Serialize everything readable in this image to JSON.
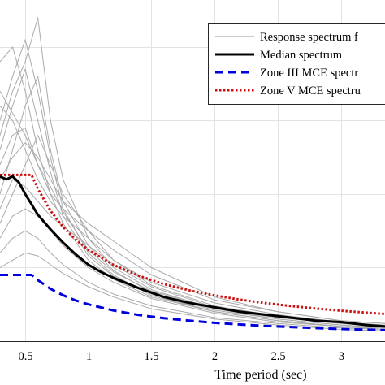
{
  "chart_data": {
    "type": "line",
    "xlabel": "Time period (sec)",
    "ylabel": "",
    "xlim": [
      0.3,
      3.35
    ],
    "ylim": [
      0.0,
      2.32
    ],
    "xticks": [
      0.5,
      1,
      1.5,
      2,
      2.5,
      3
    ],
    "xtick_labels": [
      "0.5",
      "1",
      "1.5",
      "2",
      "2.5",
      "3"
    ],
    "grid": true,
    "legend_position": "top-right",
    "legend": [
      {
        "label": "Response spectrum f",
        "style": "solid-thin",
        "color": "#aaaaaa"
      },
      {
        "label": "Median spectrum",
        "style": "solid-thick",
        "color": "#000000"
      },
      {
        "label": "Zone III MCE spectr",
        "style": "dashed",
        "color": "#0000dd"
      },
      {
        "label": "Zone V MCE spectru",
        "style": "dotted",
        "color": "#cc1111"
      }
    ],
    "series": [
      {
        "name": "Median spectrum",
        "color": "#000000",
        "x": [
          0.3,
          0.35,
          0.4,
          0.45,
          0.5,
          0.55,
          0.6,
          0.7,
          0.8,
          0.9,
          1.0,
          1.1,
          1.2,
          1.4,
          1.6,
          1.8,
          2.0,
          2.2,
          2.4,
          2.6,
          2.8,
          3.0,
          3.2,
          3.35
        ],
        "y": [
          1.12,
          1.1,
          1.12,
          1.08,
          1.0,
          0.93,
          0.86,
          0.76,
          0.67,
          0.59,
          0.52,
          0.47,
          0.43,
          0.36,
          0.3,
          0.26,
          0.23,
          0.2,
          0.18,
          0.16,
          0.14,
          0.13,
          0.11,
          0.1
        ]
      },
      {
        "name": "Zone III MCE spectrum",
        "color": "#0000dd",
        "x": [
          0.3,
          0.35,
          0.4,
          0.45,
          0.5,
          0.55,
          0.6,
          0.7,
          0.8,
          0.9,
          1.0,
          1.2,
          1.4,
          1.6,
          1.8,
          2.0,
          2.2,
          2.4,
          2.6,
          2.8,
          3.0,
          3.2,
          3.35
        ],
        "y": [
          0.45,
          0.45,
          0.45,
          0.45,
          0.45,
          0.45,
          0.415,
          0.356,
          0.312,
          0.277,
          0.25,
          0.208,
          0.178,
          0.156,
          0.139,
          0.125,
          0.113,
          0.104,
          0.096,
          0.089,
          0.083,
          0.078,
          0.075
        ]
      },
      {
        "name": "Zone V MCE spectrum",
        "color": "#cc1111",
        "x": [
          0.3,
          0.35,
          0.4,
          0.45,
          0.5,
          0.55,
          0.6,
          0.7,
          0.8,
          0.9,
          1.0,
          1.2,
          1.4,
          1.6,
          1.8,
          2.0,
          2.2,
          2.4,
          2.6,
          2.8,
          3.0,
          3.2,
          3.35
        ],
        "y": [
          1.13,
          1.13,
          1.13,
          1.13,
          1.13,
          1.13,
          1.035,
          0.887,
          0.776,
          0.69,
          0.621,
          0.518,
          0.444,
          0.388,
          0.345,
          0.311,
          0.282,
          0.259,
          0.239,
          0.222,
          0.207,
          0.194,
          0.185
        ]
      },
      {
        "name": "Response spectrum",
        "color": "#aaaaaa",
        "x": [
          0.3,
          0.4,
          0.5,
          0.6,
          0.7,
          0.8,
          1.0,
          1.2,
          1.5,
          2.0,
          2.5,
          3.0,
          3.35
        ],
        "y": [
          1.4,
          1.7,
          1.9,
          2.2,
          1.5,
          1.1,
          0.7,
          0.5,
          0.35,
          0.22,
          0.16,
          0.12,
          0.1
        ]
      },
      {
        "name": "Response spectrum",
        "color": "#aaaaaa",
        "x": [
          0.3,
          0.4,
          0.5,
          0.6,
          0.7,
          0.8,
          1.0,
          1.2,
          1.5,
          2.0,
          2.5,
          3.0,
          3.35
        ],
        "y": [
          1.0,
          1.3,
          1.6,
          1.8,
          1.3,
          0.95,
          0.65,
          0.48,
          0.33,
          0.21,
          0.15,
          0.11,
          0.09
        ]
      },
      {
        "name": "Response spectrum",
        "color": "#aaaaaa",
        "x": [
          0.3,
          0.4,
          0.5,
          0.6,
          0.7,
          0.8,
          1.0,
          1.2,
          1.5,
          2.0,
          2.5,
          3.0,
          3.35
        ],
        "y": [
          1.6,
          1.5,
          1.3,
          1.1,
          0.95,
          0.85,
          0.7,
          0.55,
          0.4,
          0.26,
          0.18,
          0.13,
          0.11
        ]
      },
      {
        "name": "Response spectrum",
        "color": "#aaaaaa",
        "x": [
          0.3,
          0.4,
          0.5,
          0.6,
          0.7,
          0.8,
          1.0,
          1.2,
          1.5,
          2.0,
          2.5,
          3.0,
          3.35
        ],
        "y": [
          0.8,
          1.0,
          1.2,
          1.4,
          1.2,
          1.0,
          0.75,
          0.55,
          0.38,
          0.24,
          0.17,
          0.12,
          0.1
        ]
      },
      {
        "name": "Response spectrum",
        "color": "#aaaaaa",
        "x": [
          0.3,
          0.4,
          0.5,
          0.6,
          0.7,
          0.8,
          1.0,
          1.2,
          1.5,
          2.0,
          2.5,
          3.0,
          3.35
        ],
        "y": [
          1.9,
          2.0,
          1.7,
          1.3,
          1.0,
          0.8,
          0.55,
          0.42,
          0.3,
          0.2,
          0.14,
          0.1,
          0.09
        ]
      },
      {
        "name": "Response spectrum",
        "color": "#aaaaaa",
        "x": [
          0.3,
          0.4,
          0.5,
          0.6,
          0.7,
          0.8,
          1.0,
          1.2,
          1.5,
          2.0,
          2.5,
          3.0,
          3.35
        ],
        "y": [
          1.2,
          1.4,
          1.45,
          1.2,
          1.0,
          0.9,
          0.75,
          0.62,
          0.45,
          0.28,
          0.2,
          0.14,
          0.12
        ]
      },
      {
        "name": "Response spectrum",
        "color": "#aaaaaa",
        "x": [
          0.3,
          0.4,
          0.5,
          0.6,
          0.7,
          0.8,
          1.0,
          1.2,
          1.5,
          2.0,
          2.5,
          3.0,
          3.35
        ],
        "y": [
          0.6,
          0.7,
          0.75,
          0.7,
          0.6,
          0.52,
          0.4,
          0.32,
          0.24,
          0.16,
          0.12,
          0.09,
          0.08
        ]
      },
      {
        "name": "Response spectrum",
        "color": "#aaaaaa",
        "x": [
          0.3,
          0.4,
          0.5,
          0.6,
          0.7,
          0.8,
          1.0,
          1.2,
          1.5,
          2.0,
          2.5,
          3.0,
          3.35
        ],
        "y": [
          1.3,
          1.6,
          1.85,
          1.5,
          1.15,
          0.85,
          0.58,
          0.44,
          0.32,
          0.2,
          0.14,
          0.1,
          0.08
        ]
      },
      {
        "name": "Response spectrum",
        "color": "#aaaaaa",
        "x": [
          0.3,
          0.4,
          0.5,
          0.6,
          0.7,
          0.8,
          1.0,
          1.2,
          1.5,
          2.0,
          2.5,
          3.0,
          3.35
        ],
        "y": [
          0.9,
          1.1,
          1.05,
          0.95,
          0.85,
          0.78,
          0.65,
          0.52,
          0.37,
          0.23,
          0.16,
          0.12,
          0.1
        ]
      },
      {
        "name": "Response spectrum",
        "color": "#aaaaaa",
        "x": [
          0.3,
          0.4,
          0.5,
          0.6,
          0.7,
          0.8,
          1.0,
          1.2,
          1.5,
          2.0,
          2.5,
          3.0,
          3.35
        ],
        "y": [
          1.5,
          1.8,
          2.05,
          1.7,
          1.25,
          0.9,
          0.6,
          0.45,
          0.31,
          0.2,
          0.14,
          0.1,
          0.09
        ]
      },
      {
        "name": "Response spectrum",
        "color": "#aaaaaa",
        "x": [
          0.3,
          0.4,
          0.5,
          0.6,
          0.7,
          0.8,
          1.0,
          1.2,
          1.5,
          2.0,
          2.5,
          3.0,
          3.35
        ],
        "y": [
          0.7,
          0.85,
          0.9,
          0.85,
          0.75,
          0.65,
          0.5,
          0.4,
          0.29,
          0.19,
          0.13,
          0.1,
          0.08
        ]
      },
      {
        "name": "Response spectrum",
        "color": "#aaaaaa",
        "x": [
          0.3,
          0.4,
          0.5,
          0.6,
          0.7,
          0.8,
          1.0,
          1.2,
          1.5,
          2.0,
          2.5,
          3.0,
          3.35
        ],
        "y": [
          1.1,
          1.25,
          1.35,
          1.25,
          1.1,
          0.95,
          0.8,
          0.68,
          0.5,
          0.3,
          0.2,
          0.14,
          0.12
        ]
      },
      {
        "name": "Response spectrum",
        "color": "#aaaaaa",
        "x": [
          0.3,
          0.4,
          0.5,
          0.6,
          0.7,
          0.8,
          1.0,
          1.2,
          1.5,
          2.0,
          2.5,
          3.0,
          3.35
        ],
        "y": [
          1.7,
          1.55,
          1.4,
          1.2,
          1.05,
          0.88,
          0.62,
          0.47,
          0.34,
          0.22,
          0.15,
          0.11,
          0.09
        ]
      },
      {
        "name": "Response spectrum",
        "color": "#aaaaaa",
        "x": [
          0.3,
          0.4,
          0.5,
          0.6,
          0.7,
          0.8,
          1.0,
          1.2,
          1.5,
          2.0,
          2.5,
          3.0,
          3.35
        ],
        "y": [
          0.5,
          0.55,
          0.6,
          0.58,
          0.52,
          0.46,
          0.37,
          0.3,
          0.22,
          0.15,
          0.11,
          0.08,
          0.07
        ]
      }
    ]
  }
}
